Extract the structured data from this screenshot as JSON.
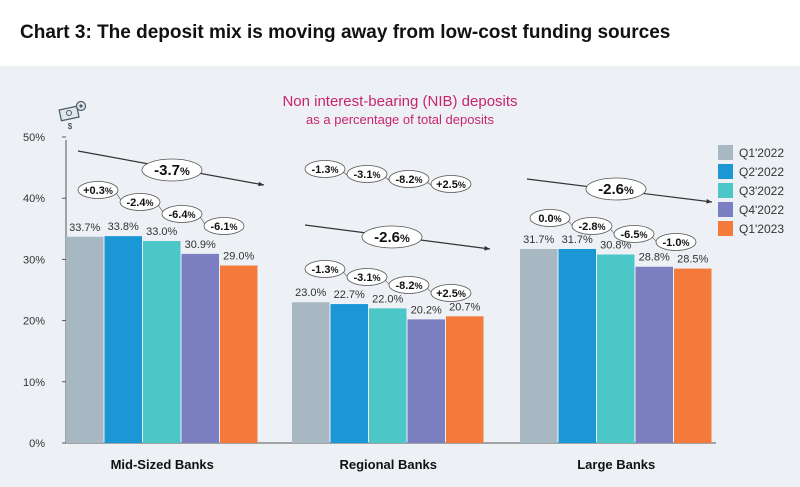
{
  "page_title": "Chart 3: The deposit mix is moving away from low-cost funding sources",
  "icon": "money-gear-icon",
  "colors": {
    "background": "#edf1f5",
    "subtitle": "#c8246e",
    "series": [
      "#a7b8c2",
      "#1b97d5",
      "#4cc7c8",
      "#7b7fc1",
      "#f37a3b"
    ]
  },
  "chart_data": {
    "type": "bar",
    "title": "Non interest-bearing (NIB) deposits",
    "subtitle": "as a percentage of total deposits",
    "categories": [
      "Mid-Sized Banks",
      "Regional Banks",
      "Large Banks"
    ],
    "series": [
      {
        "name": "Q1'2022",
        "values": [
          33.7,
          23.0,
          31.7
        ],
        "labels": [
          "33.7%",
          "23.0%",
          "31.7%"
        ]
      },
      {
        "name": "Q2'2022",
        "values": [
          33.8,
          22.7,
          31.7
        ],
        "labels": [
          "33.8%",
          "22.7%",
          "31.7%"
        ]
      },
      {
        "name": "Q3'2022",
        "values": [
          33.0,
          22.0,
          30.8
        ],
        "labels": [
          "33.0%",
          "22.0%",
          "30.8%"
        ]
      },
      {
        "name": "Q4'2022",
        "values": [
          30.9,
          20.2,
          28.8
        ],
        "labels": [
          "30.9%",
          "20.2%",
          "28.8%"
        ]
      },
      {
        "name": "Q1'2023",
        "values": [
          29.0,
          20.7,
          28.5
        ],
        "labels": [
          "29.0%",
          "20.7%",
          "28.5%"
        ]
      }
    ],
    "ylim": [
      0,
      50
    ],
    "yticks": [
      "0%",
      "10%",
      "20%",
      "30%",
      "40%",
      "50%"
    ],
    "legend_position": "right",
    "grid": false,
    "quarter_changes": [
      [
        "+0.3%",
        "-2.4%",
        "-6.4%",
        "-6.1%"
      ],
      [
        "-1.3%",
        "-3.1%",
        "-8.2%",
        "+2.5%"
      ],
      [
        "0.0%",
        "-2.8%",
        "-6.5%",
        "-1.0%"
      ]
    ],
    "overall_changes": [
      "-3.7%",
      "-2.6%",
      "-2.6%"
    ],
    "extra_annotation_regional": [
      "-1.3%",
      "-3.1%",
      "-8.2%",
      "+2.5%"
    ]
  }
}
